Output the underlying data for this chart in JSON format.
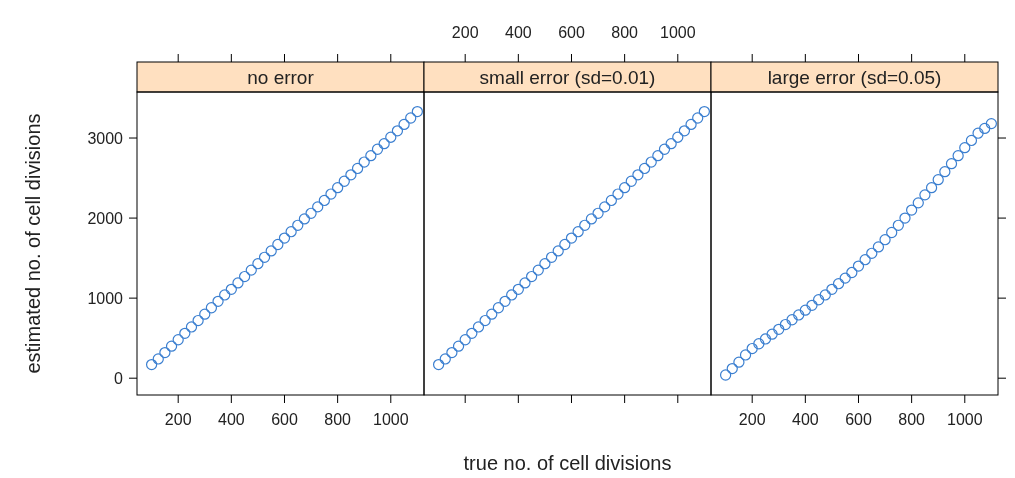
{
  "chart_data": [
    {
      "type": "scatter",
      "title": "no error",
      "ylabel": "estimated no. of cell divisions",
      "xlim": [
        45,
        1125
      ],
      "xticks": [
        200,
        400,
        600,
        800,
        1000
      ],
      "ylim": [
        -210,
        3575
      ],
      "yticks": [
        0,
        1000,
        2000,
        3000
      ],
      "marker": "circle",
      "grid": false,
      "series": [
        {
          "color": "#3b7fd0",
          "x": [
            100,
            125,
            150,
            175,
            200,
            225,
            250,
            275,
            300,
            325,
            350,
            375,
            400,
            425,
            450,
            475,
            500,
            525,
            550,
            575,
            600,
            625,
            650,
            675,
            700,
            725,
            750,
            775,
            800,
            825,
            850,
            875,
            900,
            925,
            950,
            975,
            1000,
            1025,
            1050,
            1075,
            1100
          ],
          "values": [
            170,
            240,
            320,
            400,
            480,
            560,
            640,
            720,
            800,
            880,
            960,
            1040,
            1110,
            1190,
            1270,
            1350,
            1430,
            1510,
            1590,
            1670,
            1750,
            1830,
            1910,
            1990,
            2060,
            2140,
            2220,
            2300,
            2380,
            2460,
            2540,
            2620,
            2700,
            2780,
            2860,
            2930,
            3010,
            3090,
            3170,
            3250,
            3330
          ]
        }
      ]
    },
    {
      "type": "scatter",
      "title": "small error (sd=0.01)",
      "xlabel": "true no. of cell divisions",
      "xlim": [
        45,
        1125
      ],
      "xticks": [
        200,
        400,
        600,
        800,
        1000
      ],
      "ylim": [
        -210,
        3575
      ],
      "yticks": [
        0,
        1000,
        2000,
        3000
      ],
      "tick_labels": "x",
      "marker": "circle",
      "grid": false,
      "series": [
        {
          "color": "#3b7fd0",
          "x": [
            100,
            125,
            150,
            175,
            200,
            225,
            250,
            275,
            300,
            325,
            350,
            375,
            400,
            425,
            450,
            475,
            500,
            525,
            550,
            575,
            600,
            625,
            650,
            675,
            700,
            725,
            750,
            775,
            800,
            825,
            850,
            875,
            900,
            925,
            950,
            975,
            1000,
            1025,
            1050,
            1075,
            1100
          ],
          "values": [
            170,
            240,
            320,
            400,
            480,
            560,
            640,
            720,
            800,
            880,
            960,
            1040,
            1110,
            1190,
            1270,
            1350,
            1430,
            1510,
            1590,
            1670,
            1750,
            1830,
            1910,
            1990,
            2060,
            2140,
            2220,
            2300,
            2380,
            2460,
            2540,
            2620,
            2700,
            2780,
            2860,
            2930,
            3010,
            3090,
            3170,
            3250,
            3330
          ]
        }
      ]
    },
    {
      "type": "scatter",
      "title": "large error (sd=0.05)",
      "xlim": [
        45,
        1125
      ],
      "xticks": [
        200,
        400,
        600,
        800,
        1000
      ],
      "ylim": [
        -210,
        3575
      ],
      "yticks": [
        0,
        1000,
        2000,
        3000
      ],
      "tick_labels": "x",
      "marker": "circle",
      "grid": false,
      "series": [
        {
          "color": "#3b7fd0",
          "x": [
            100,
            125,
            150,
            175,
            200,
            225,
            250,
            275,
            300,
            325,
            350,
            375,
            400,
            425,
            450,
            475,
            500,
            525,
            550,
            575,
            600,
            625,
            650,
            675,
            700,
            725,
            750,
            775,
            800,
            825,
            850,
            875,
            900,
            925,
            950,
            975,
            1000,
            1025,
            1050,
            1075,
            1100
          ],
          "values": [
            40,
            120,
            200,
            290,
            370,
            430,
            490,
            550,
            610,
            670,
            730,
            790,
            850,
            910,
            980,
            1040,
            1110,
            1180,
            1250,
            1320,
            1400,
            1480,
            1560,
            1640,
            1730,
            1820,
            1910,
            2000,
            2100,
            2190,
            2290,
            2380,
            2480,
            2580,
            2680,
            2780,
            2880,
            2970,
            3060,
            3120,
            3180
          ]
        }
      ]
    }
  ]
}
